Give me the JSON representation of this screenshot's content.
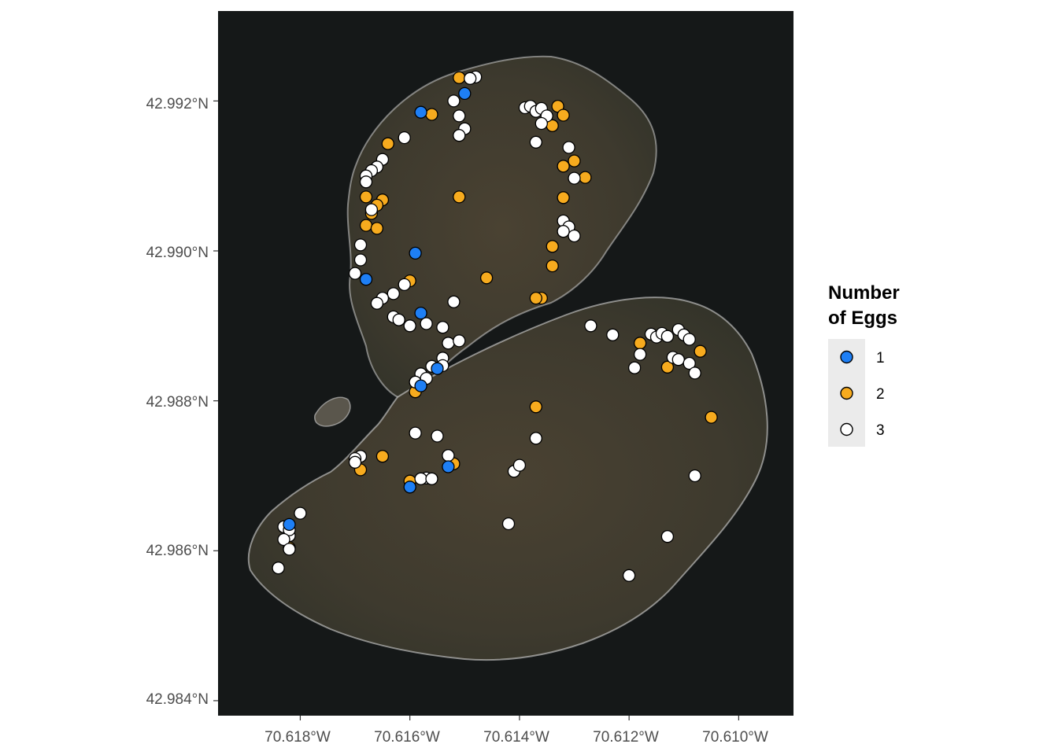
{
  "colors": {
    "egg_1": "#1e7ff5",
    "egg_2": "#f7ab1e",
    "egg_3": "#ffffff",
    "point_outline": "#000000",
    "legend_key_bg": "#ebebeb",
    "water": "#161818"
  },
  "chart_data": {
    "type": "scatter",
    "background": "satellite imagery of two connected islands",
    "xlim": [
      -70.6195,
      -70.609
    ],
    "ylim": [
      42.9838,
      42.9932
    ],
    "grid": false,
    "legend_position": "right",
    "x_ticks": [
      {
        "value": -70.618,
        "label": "70.618°W"
      },
      {
        "value": -70.616,
        "label": "70.616°W"
      },
      {
        "value": -70.614,
        "label": "70.614°W"
      },
      {
        "value": -70.612,
        "label": "70.612°W"
      },
      {
        "value": -70.61,
        "label": "70.610°W"
      }
    ],
    "y_ticks": [
      {
        "value": 42.984,
        "label": "42.984°N"
      },
      {
        "value": 42.986,
        "label": "42.986°N"
      },
      {
        "value": 42.988,
        "label": "42.988°N"
      },
      {
        "value": 42.99,
        "label": "42.990°N"
      },
      {
        "value": 42.992,
        "label": "42.992°N"
      }
    ],
    "legend": {
      "title_line1": "Number",
      "title_line2": "of Eggs",
      "entries": [
        {
          "label": "1",
          "color_key": "egg_1"
        },
        {
          "label": "2",
          "color_key": "egg_2"
        },
        {
          "label": "3",
          "color_key": "egg_3"
        }
      ]
    },
    "series": [
      {
        "name": "1",
        "points": [
          [
            -70.615,
            42.9921
          ],
          [
            -70.6158,
            42.99185
          ],
          [
            -70.6168,
            42.98962
          ],
          [
            -70.6159,
            42.98997
          ],
          [
            -70.6158,
            42.98917
          ],
          [
            -70.6155,
            42.98843
          ],
          [
            -70.6158,
            42.9882
          ],
          [
            -70.6153,
            42.98712
          ],
          [
            -70.616,
            42.98685
          ],
          [
            -70.6182,
            42.98635
          ]
        ]
      },
      {
        "name": "2",
        "points": [
          [
            -70.6151,
            42.99231
          ],
          [
            -70.6156,
            42.99182
          ],
          [
            -70.6133,
            42.99193
          ],
          [
            -70.6132,
            42.99181
          ],
          [
            -70.6134,
            42.99167
          ],
          [
            -70.6164,
            42.99143
          ],
          [
            -70.613,
            42.9912
          ],
          [
            -70.6132,
            42.99113
          ],
          [
            -70.6128,
            42.99098
          ],
          [
            -70.6151,
            42.99072
          ],
          [
            -70.6132,
            42.99071
          ],
          [
            -70.6168,
            42.99072
          ],
          [
            -70.6165,
            42.99068
          ],
          [
            -70.6166,
            42.99061
          ],
          [
            -70.6167,
            42.9905
          ],
          [
            -70.6168,
            42.99034
          ],
          [
            -70.6166,
            42.9903
          ],
          [
            -70.6134,
            42.99006
          ],
          [
            -70.6134,
            42.9898
          ],
          [
            -70.616,
            42.9896
          ],
          [
            -70.6146,
            42.98964
          ],
          [
            -70.6136,
            42.98937
          ],
          [
            -70.6137,
            42.98937
          ],
          [
            -70.6118,
            42.98877
          ],
          [
            -70.6113,
            42.98845
          ],
          [
            -70.6107,
            42.98866
          ],
          [
            -70.6105,
            42.98778
          ],
          [
            -70.6137,
            42.98792
          ],
          [
            -70.6159,
            42.98812
          ],
          [
            -70.6165,
            42.98726
          ],
          [
            -70.6152,
            42.98716
          ],
          [
            -70.6169,
            42.98708
          ],
          [
            -70.616,
            42.98693
          ],
          [
            -70.6182,
            42.98604
          ]
        ]
      },
      {
        "name": "3",
        "points": [
          [
            -70.6148,
            42.99232
          ],
          [
            -70.6149,
            42.9923
          ],
          [
            -70.6152,
            42.992
          ],
          [
            -70.6151,
            42.9918
          ],
          [
            -70.615,
            42.99163
          ],
          [
            -70.6151,
            42.99154
          ],
          [
            -70.6161,
            42.99151
          ],
          [
            -70.6139,
            42.99191
          ],
          [
            -70.6138,
            42.99193
          ],
          [
            -70.6137,
            42.99186
          ],
          [
            -70.6136,
            42.9919
          ],
          [
            -70.6135,
            42.9918
          ],
          [
            -70.6136,
            42.9917
          ],
          [
            -70.6137,
            42.99145
          ],
          [
            -70.6131,
            42.99138
          ],
          [
            -70.6165,
            42.99122
          ],
          [
            -70.6166,
            42.99112
          ],
          [
            -70.6167,
            42.99107
          ],
          [
            -70.6168,
            42.991
          ],
          [
            -70.6168,
            42.99092
          ],
          [
            -70.613,
            42.99097
          ],
          [
            -70.6167,
            42.99055
          ],
          [
            -70.6132,
            42.9904
          ],
          [
            -70.6131,
            42.99032
          ],
          [
            -70.6132,
            42.99026
          ],
          [
            -70.613,
            42.9902
          ],
          [
            -70.6169,
            42.99008
          ],
          [
            -70.6169,
            42.98988
          ],
          [
            -70.617,
            42.9897
          ],
          [
            -70.6161,
            42.98955
          ],
          [
            -70.6163,
            42.98943
          ],
          [
            -70.6165,
            42.98937
          ],
          [
            -70.6166,
            42.9893
          ],
          [
            -70.6152,
            42.98932
          ],
          [
            -70.6163,
            42.98912
          ],
          [
            -70.6162,
            42.98908
          ],
          [
            -70.616,
            42.989
          ],
          [
            -70.6157,
            42.98903
          ],
          [
            -70.6154,
            42.98898
          ],
          [
            -70.6153,
            42.98877
          ],
          [
            -70.6151,
            42.9888
          ],
          [
            -70.6154,
            42.98857
          ],
          [
            -70.6154,
            42.98847
          ],
          [
            -70.6156,
            42.98846
          ],
          [
            -70.6158,
            42.98836
          ],
          [
            -70.6157,
            42.9883
          ],
          [
            -70.6159,
            42.98825
          ],
          [
            -70.6127,
            42.989
          ],
          [
            -70.6123,
            42.98888
          ],
          [
            -70.6116,
            42.98889
          ],
          [
            -70.6115,
            42.98885
          ],
          [
            -70.6114,
            42.9889
          ],
          [
            -70.6113,
            42.98886
          ],
          [
            -70.6111,
            42.98895
          ],
          [
            -70.611,
            42.98888
          ],
          [
            -70.6109,
            42.98882
          ],
          [
            -70.6118,
            42.98862
          ],
          [
            -70.6112,
            42.98858
          ],
          [
            -70.6111,
            42.98855
          ],
          [
            -70.6109,
            42.9885
          ],
          [
            -70.6119,
            42.98844
          ],
          [
            -70.6108,
            42.98837
          ],
          [
            -70.6159,
            42.98757
          ],
          [
            -70.6155,
            42.98753
          ],
          [
            -70.6137,
            42.9875
          ],
          [
            -70.6153,
            42.98727
          ],
          [
            -70.6169,
            42.98726
          ],
          [
            -70.617,
            42.98723
          ],
          [
            -70.617,
            42.98718
          ],
          [
            -70.6157,
            42.98697
          ],
          [
            -70.6158,
            42.98696
          ],
          [
            -70.6156,
            42.98696
          ],
          [
            -70.6141,
            42.98706
          ],
          [
            -70.614,
            42.98714
          ],
          [
            -70.6108,
            42.987
          ],
          [
            -70.6183,
            42.98632
          ],
          [
            -70.6182,
            42.9862
          ],
          [
            -70.618,
            42.9865
          ],
          [
            -70.6182,
            42.98628
          ],
          [
            -70.6183,
            42.98615
          ],
          [
            -70.6182,
            42.98602
          ],
          [
            -70.6184,
            42.98577
          ],
          [
            -70.6142,
            42.98636
          ],
          [
            -70.6113,
            42.98619
          ],
          [
            -70.612,
            42.98567
          ]
        ]
      }
    ]
  }
}
